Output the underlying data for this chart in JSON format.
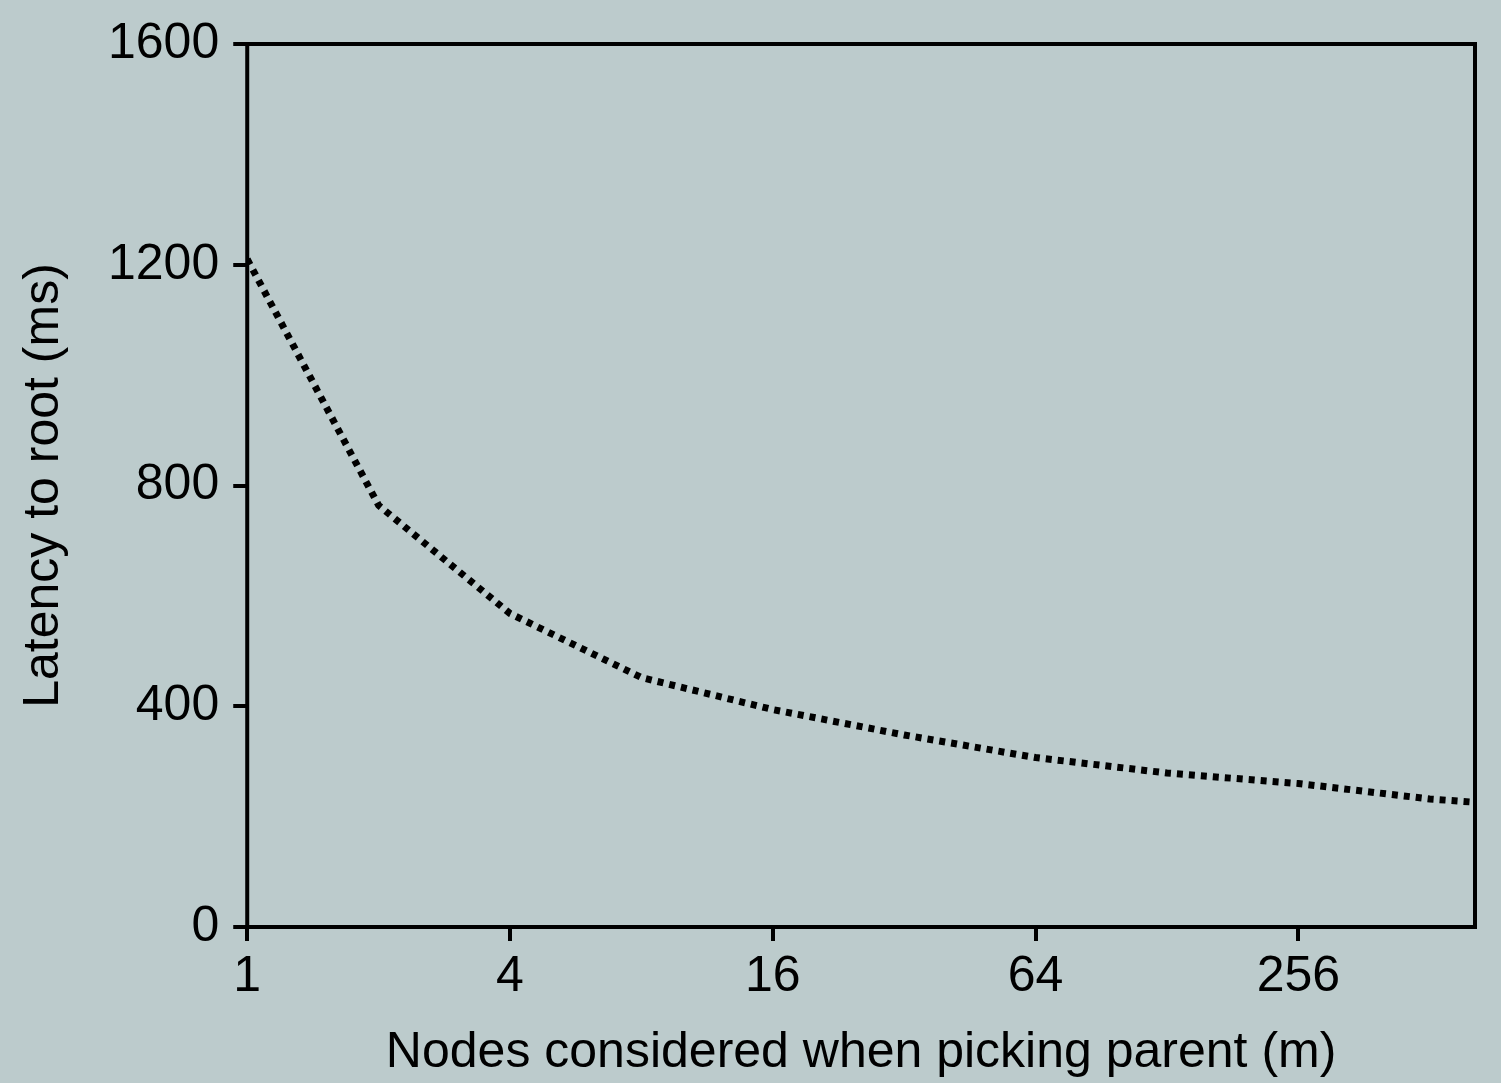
{
  "chart_data": {
    "type": "line",
    "xlabel": "Nodes considered when picking parent (m)",
    "ylabel": "Latency to root (ms)",
    "x": [
      1,
      2,
      4,
      8,
      16,
      32,
      64,
      128,
      256,
      512,
      650
    ],
    "series": [
      {
        "color": "#000000",
        "values": [
          1210,
          764,
          568,
          452,
          394,
          348,
          307,
          279,
          260,
          232,
          226
        ]
      }
    ],
    "log": "x",
    "xlim": [
      1,
      650
    ],
    "xticks": [
      1,
      4,
      16,
      64,
      256
    ],
    "ylim": [
      0,
      1600
    ],
    "yticks": [
      0,
      400,
      800,
      1200,
      1600
    ],
    "grid": false,
    "legend": false,
    "marker": "none",
    "line_style": "dotted"
  }
}
